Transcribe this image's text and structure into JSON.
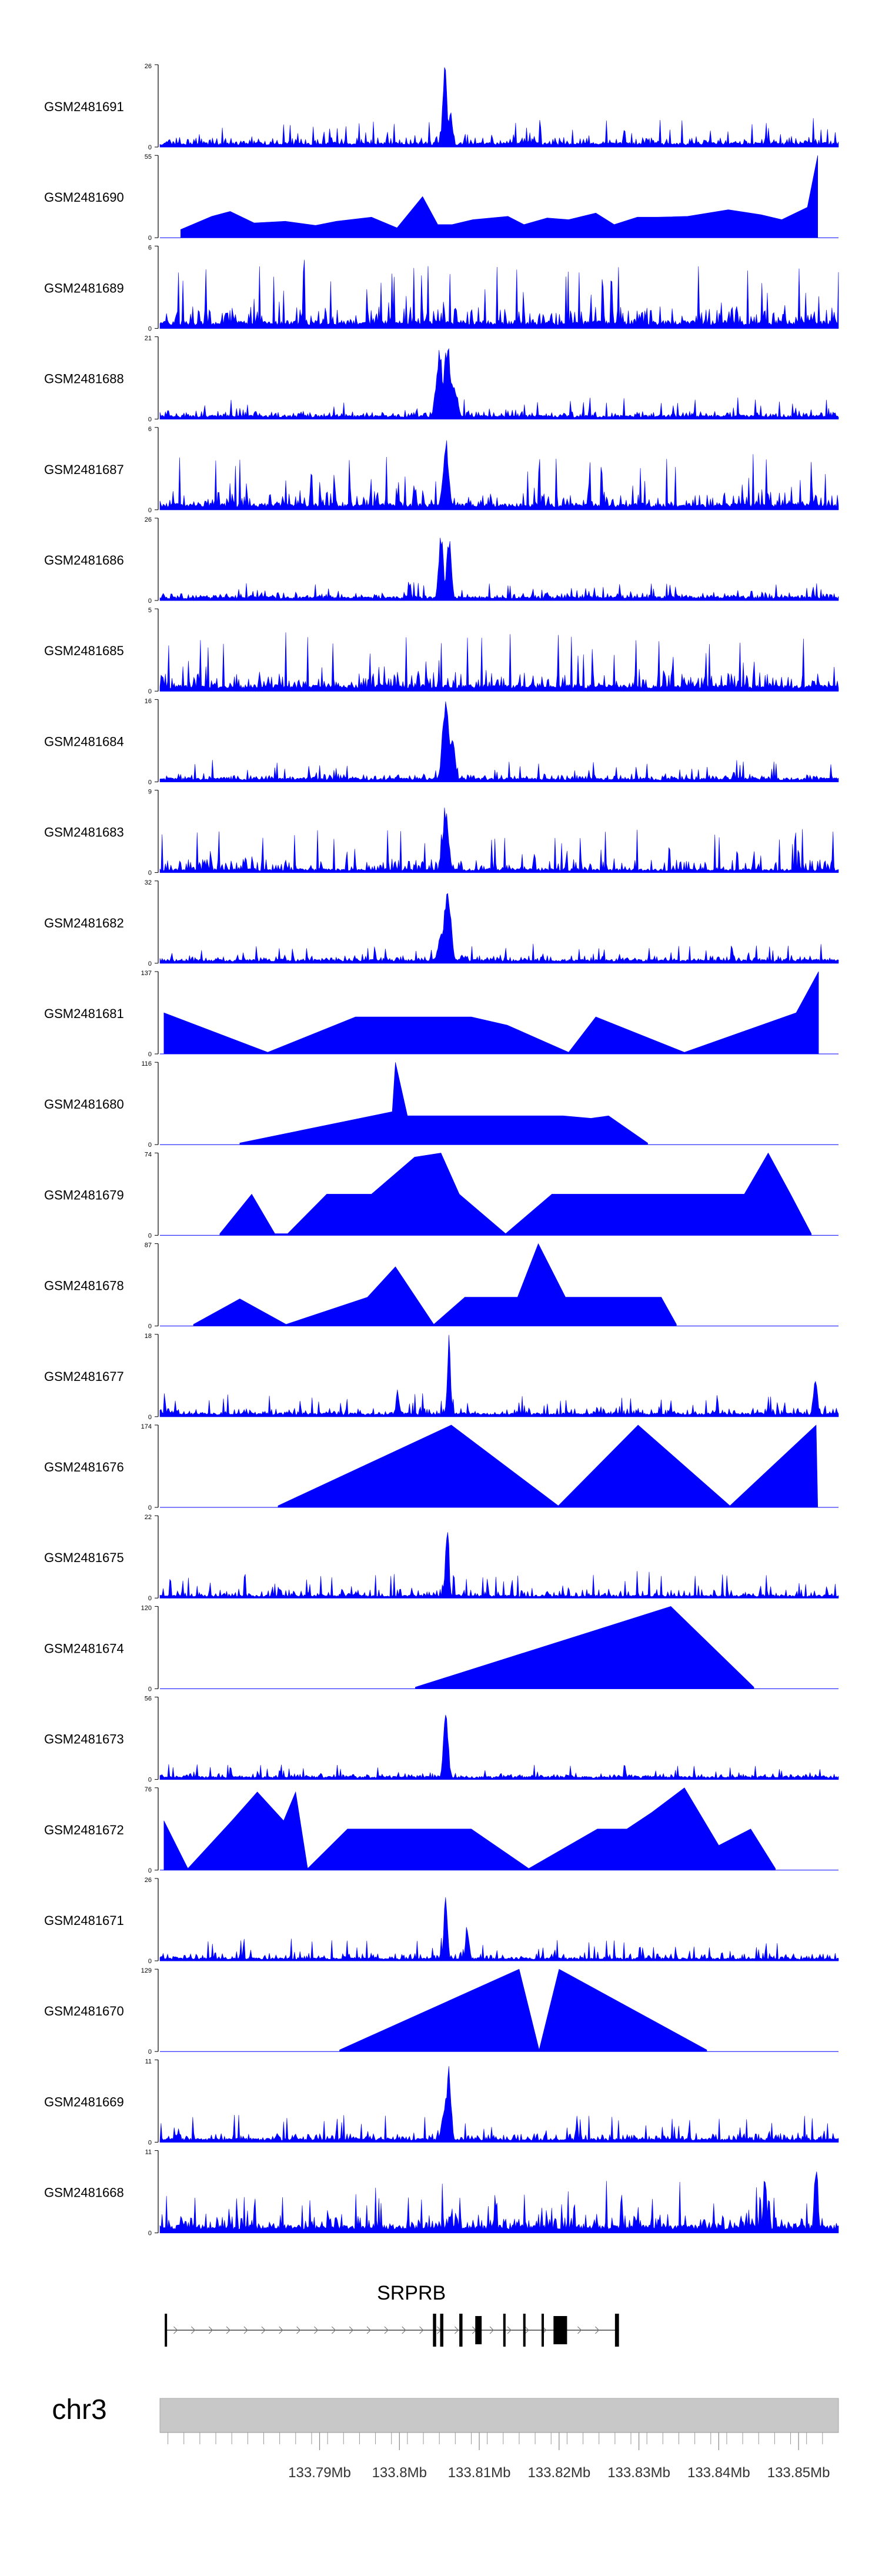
{
  "chart_data": {
    "type": "area",
    "title": "",
    "chromosome": "chr3",
    "xlim": [
      133.77,
      133.855
    ],
    "x_unit": "Mb",
    "x_ticks": [
      {
        "value": 133.79,
        "label": "133.79Mb"
      },
      {
        "value": 133.8,
        "label": "133.8Mb"
      },
      {
        "value": 133.81,
        "label": "133.81Mb"
      },
      {
        "value": 133.82,
        "label": "133.82Mb"
      },
      {
        "value": 133.83,
        "label": "133.83Mb"
      },
      {
        "value": 133.84,
        "label": "133.84Mb"
      },
      {
        "value": 133.85,
        "label": "133.85Mb"
      }
    ],
    "fill_color": "#0000ff",
    "tracks": [
      {
        "name": "GSM2481691",
        "ymax": 26,
        "style": "dense",
        "baseline": 0.06,
        "noise": 0.3,
        "peaks": [
          [
            133.8057,
            1.0,
            0.0004
          ],
          [
            133.8064,
            0.45,
            0.0004
          ]
        ],
        "spikes": []
      },
      {
        "name": "GSM2481690",
        "ymax": 55,
        "style": "sparse",
        "baseline": 0,
        "noise": 0,
        "peaks": [],
        "spikes": [
          [
            133.7726,
            0.1
          ],
          [
            133.7765,
            0.26
          ],
          [
            133.7788,
            0.32
          ],
          [
            133.7818,
            0.18
          ],
          [
            133.7857,
            0.2
          ],
          [
            133.7895,
            0.15
          ],
          [
            133.7921,
            0.2
          ],
          [
            133.7965,
            0.25
          ],
          [
            133.7997,
            0.12
          ],
          [
            133.8029,
            0.5
          ],
          [
            133.8048,
            0.16
          ],
          [
            133.8066,
            0.16
          ],
          [
            133.8092,
            0.22
          ],
          [
            133.8136,
            0.26
          ],
          [
            133.8156,
            0.16
          ],
          [
            133.8185,
            0.24
          ],
          [
            133.8212,
            0.22
          ],
          [
            133.8246,
            0.3
          ],
          [
            133.8269,
            0.16
          ],
          [
            133.8298,
            0.25
          ],
          [
            133.8323,
            0.25
          ],
          [
            133.8361,
            0.26
          ],
          [
            133.8412,
            0.34
          ],
          [
            133.8453,
            0.28
          ],
          [
            133.8479,
            0.22
          ],
          [
            133.8511,
            0.37
          ],
          [
            133.8524,
            1.0
          ]
        ]
      },
      {
        "name": "GSM2481689",
        "ymax": 6,
        "style": "dense",
        "baseline": 0.1,
        "noise": 0.75,
        "peaks": [],
        "spikes": []
      },
      {
        "name": "GSM2481688",
        "ymax": 21,
        "style": "dense",
        "baseline": 0.05,
        "noise": 0.22,
        "peaks": [
          [
            133.805,
            0.85,
            0.0006
          ],
          [
            133.806,
            0.95,
            0.0006
          ],
          [
            133.8068,
            0.5,
            0.0006
          ]
        ],
        "spikes": []
      },
      {
        "name": "GSM2481687",
        "ymax": 6,
        "style": "dense",
        "baseline": 0.08,
        "noise": 0.6,
        "peaks": [
          [
            133.8058,
            0.9,
            0.0005
          ]
        ],
        "spikes": []
      },
      {
        "name": "GSM2481686",
        "ymax": 26,
        "style": "dense",
        "baseline": 0.05,
        "noise": 0.18,
        "peaks": [
          [
            133.8052,
            0.95,
            0.0004
          ],
          [
            133.8062,
            0.9,
            0.0004
          ]
        ],
        "spikes": []
      },
      {
        "name": "GSM2481685",
        "ymax": 5,
        "style": "dense",
        "baseline": 0.08,
        "noise": 0.65,
        "peaks": [],
        "spikes": []
      },
      {
        "name": "GSM2481684",
        "ymax": 16,
        "style": "dense",
        "baseline": 0.05,
        "noise": 0.22,
        "peaks": [
          [
            133.8058,
            1.0,
            0.0006
          ],
          [
            133.8066,
            0.6,
            0.0005
          ]
        ],
        "spikes": []
      },
      {
        "name": "GSM2481683",
        "ymax": 9,
        "style": "dense",
        "baseline": 0.05,
        "noise": 0.5,
        "peaks": [
          [
            133.8058,
            0.9,
            0.0005
          ]
        ],
        "spikes": []
      },
      {
        "name": "GSM2481682",
        "ymax": 32,
        "style": "dense",
        "baseline": 0.05,
        "noise": 0.2,
        "peaks": [
          [
            133.806,
            1.0,
            0.0006
          ],
          [
            133.8052,
            0.4,
            0.0005
          ]
        ],
        "spikes": []
      },
      {
        "name": "GSM2481681",
        "ymax": 137,
        "style": "sparse",
        "baseline": 0,
        "noise": 0,
        "peaks": [],
        "spikes": [
          [
            133.7705,
            0.5
          ],
          [
            133.7835,
            0.02
          ],
          [
            133.7945,
            0.45
          ],
          [
            133.809,
            0.45
          ],
          [
            133.8135,
            0.35
          ],
          [
            133.8212,
            0.02
          ],
          [
            133.8246,
            0.45
          ],
          [
            133.8357,
            0.02
          ],
          [
            133.8497,
            0.5
          ],
          [
            133.8525,
            1.0
          ]
        ]
      },
      {
        "name": "GSM2481680",
        "ymax": 116,
        "style": "sparse",
        "baseline": 0,
        "noise": 0,
        "peaks": [],
        "spikes": [
          [
            133.78,
            0.02
          ],
          [
            133.7991,
            0.4
          ],
          [
            133.7995,
            1.0
          ],
          [
            133.801,
            0.35
          ],
          [
            133.8029,
            0.35
          ],
          [
            133.806,
            0.35
          ],
          [
            133.809,
            0.35
          ],
          [
            133.8123,
            0.35
          ],
          [
            133.8156,
            0.35
          ],
          [
            133.8205,
            0.35
          ],
          [
            133.824,
            0.32
          ],
          [
            133.8262,
            0.35
          ],
          [
            133.8311,
            0.02
          ]
        ]
      },
      {
        "name": "GSM2481679",
        "ymax": 74,
        "style": "sparse",
        "baseline": 0,
        "noise": 0,
        "peaks": [],
        "spikes": [
          [
            133.7775,
            0.02
          ],
          [
            133.7815,
            0.5
          ],
          [
            133.7844,
            0.02
          ],
          [
            133.786,
            0.02
          ],
          [
            133.7909,
            0.5
          ],
          [
            133.7934,
            0.5
          ],
          [
            133.7965,
            0.5
          ],
          [
            133.8019,
            0.95
          ],
          [
            133.8052,
            1.0
          ],
          [
            133.8075,
            0.5
          ],
          [
            133.8133,
            0.02
          ],
          [
            133.8191,
            0.5
          ],
          [
            133.8215,
            0.5
          ],
          [
            133.8246,
            0.5
          ],
          [
            133.8268,
            0.5
          ],
          [
            133.8304,
            0.5
          ],
          [
            133.8334,
            0.5
          ],
          [
            133.8367,
            0.5
          ],
          [
            133.8402,
            0.5
          ],
          [
            133.8432,
            0.5
          ],
          [
            133.8462,
            1.0
          ],
          [
            133.849,
            0.5
          ],
          [
            133.8516,
            0.02
          ]
        ]
      },
      {
        "name": "GSM2481678",
        "ymax": 87,
        "style": "sparse",
        "baseline": 0,
        "noise": 0,
        "peaks": [],
        "spikes": [
          [
            133.7742,
            0.02
          ],
          [
            133.78,
            0.33
          ],
          [
            133.7858,
            0.02
          ],
          [
            133.796,
            0.35
          ],
          [
            133.7995,
            0.72
          ],
          [
            133.8043,
            0.02
          ],
          [
            133.8082,
            0.35
          ],
          [
            133.8115,
            0.35
          ],
          [
            133.8148,
            0.35
          ],
          [
            133.8174,
            1.0
          ],
          [
            133.8208,
            0.35
          ],
          [
            133.8234,
            0.35
          ],
          [
            133.8262,
            0.35
          ],
          [
            133.829,
            0.35
          ],
          [
            133.8328,
            0.35
          ],
          [
            133.8347,
            0.02
          ]
        ]
      },
      {
        "name": "GSM2481677",
        "ymax": 18,
        "style": "dense",
        "baseline": 0.05,
        "noise": 0.25,
        "peaks": [
          [
            133.8062,
            1.0,
            0.0003
          ],
          [
            133.7998,
            0.35,
            0.0003
          ],
          [
            133.8521,
            0.45,
            0.0004
          ]
        ],
        "spikes": []
      },
      {
        "name": "GSM2481676",
        "ymax": 174,
        "style": "sparse",
        "baseline": 0,
        "noise": 0,
        "peaks": [],
        "spikes": [
          [
            133.7848,
            0.02
          ],
          [
            133.8065,
            1.0
          ],
          [
            133.8199,
            0.02
          ],
          [
            133.8299,
            1.0
          ],
          [
            133.8414,
            0.02
          ],
          [
            133.8522,
            1.0
          ],
          [
            133.8524,
            0.02
          ]
        ]
      },
      {
        "name": "GSM2481675",
        "ymax": 22,
        "style": "dense",
        "baseline": 0.04,
        "noise": 0.3,
        "peaks": [
          [
            133.806,
            1.0,
            0.0003
          ]
        ],
        "spikes": []
      },
      {
        "name": "GSM2481674",
        "ymax": 120,
        "style": "sparse",
        "baseline": 0,
        "noise": 0,
        "peaks": [],
        "spikes": [
          [
            133.802,
            0.02
          ],
          [
            133.834,
            1.0
          ],
          [
            133.8444,
            0.02
          ]
        ]
      },
      {
        "name": "GSM2481673",
        "ymax": 56,
        "style": "dense",
        "baseline": 0.04,
        "noise": 0.15,
        "peaks": [
          [
            133.8058,
            1.0,
            0.0004
          ]
        ],
        "spikes": []
      },
      {
        "name": "GSM2481672",
        "ymax": 76,
        "style": "sparse",
        "baseline": 0,
        "noise": 0,
        "peaks": [],
        "spikes": [
          [
            133.7705,
            0.6
          ],
          [
            133.7735,
            0.02
          ],
          [
            133.779,
            0.6
          ],
          [
            133.7822,
            0.95
          ],
          [
            133.7855,
            0.6
          ],
          [
            133.787,
            0.95
          ],
          [
            133.7885,
            0.02
          ],
          [
            133.7935,
            0.5
          ],
          [
            133.7978,
            0.5
          ],
          [
            133.8018,
            0.5
          ],
          [
            133.8051,
            0.5
          ],
          [
            133.809,
            0.5
          ],
          [
            133.8162,
            0.02
          ],
          [
            133.8248,
            0.5
          ],
          [
            133.8285,
            0.5
          ],
          [
            133.8316,
            0.7
          ],
          [
            133.8357,
            1.0
          ],
          [
            133.84,
            0.3
          ],
          [
            133.844,
            0.5
          ],
          [
            133.8471,
            0.02
          ]
        ]
      },
      {
        "name": "GSM2481671",
        "ymax": 26,
        "style": "dense",
        "baseline": 0.04,
        "noise": 0.25,
        "peaks": [
          [
            133.8058,
            1.0,
            0.0003
          ],
          [
            133.8085,
            0.5,
            0.0003
          ]
        ],
        "spikes": []
      },
      {
        "name": "GSM2481670",
        "ymax": 129,
        "style": "sparse",
        "baseline": 0,
        "noise": 0,
        "peaks": [],
        "spikes": [
          [
            133.7925,
            0.02
          ],
          [
            133.815,
            1.0
          ],
          [
            133.8175,
            0.02
          ],
          [
            133.82,
            1.0
          ],
          [
            133.8385,
            0.02
          ]
        ]
      },
      {
        "name": "GSM2481669",
        "ymax": 11,
        "style": "dense",
        "baseline": 0.05,
        "noise": 0.3,
        "peaks": [
          [
            133.8062,
            1.0,
            0.0004
          ],
          [
            133.8058,
            0.6,
            0.0006
          ]
        ],
        "spikes": []
      },
      {
        "name": "GSM2481668",
        "ymax": 11,
        "style": "dense",
        "baseline": 0.1,
        "noise": 0.55,
        "peaks": [
          [
            133.8522,
            1.0,
            0.0003
          ],
          [
            133.8458,
            0.8,
            0.0003
          ]
        ],
        "spikes": []
      }
    ],
    "gene": {
      "name": "SRPRB",
      "start": 133.7706,
      "end": 133.8275,
      "strand": "+",
      "exons": [
        [
          133.7706,
          133.7708
        ],
        [
          133.8042,
          133.8046
        ],
        [
          133.8051,
          133.8055
        ],
        [
          133.8075,
          133.8079
        ],
        [
          133.8095,
          133.8103
        ],
        [
          133.813,
          133.8133
        ],
        [
          133.8155,
          133.8158
        ],
        [
          133.8178,
          133.8181
        ],
        [
          133.8193,
          133.821
        ],
        [
          133.827,
          133.8275
        ]
      ]
    }
  }
}
